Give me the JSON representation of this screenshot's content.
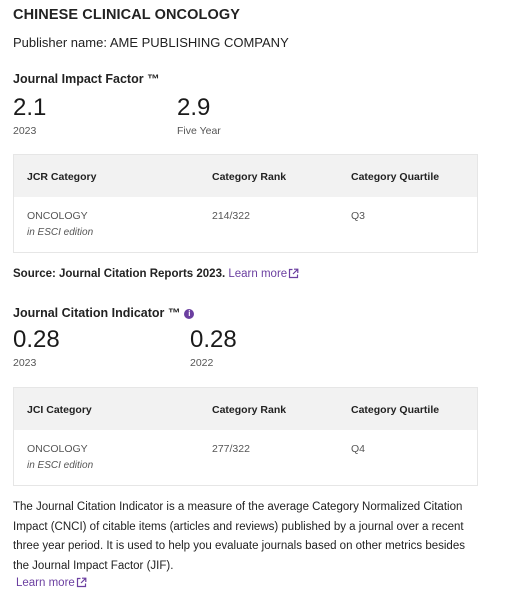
{
  "journal": {
    "title": "CHINESE CLINICAL ONCOLOGY",
    "publisher": "Publisher name: AME PUBLISHING COMPANY"
  },
  "jif": {
    "title": "Journal Impact Factor ™",
    "metrics": [
      {
        "value": "2.1",
        "label": "2023"
      },
      {
        "value": "2.9",
        "label": "Five Year"
      }
    ],
    "table": {
      "headers": [
        "JCR Category",
        "Category Rank",
        "Category Quartile"
      ],
      "rows": [
        {
          "category": "ONCOLOGY",
          "edition": "in ESCI edition",
          "rank": "214/322",
          "quartile": "Q3"
        }
      ]
    }
  },
  "source": {
    "text": "Source: Journal Citation Reports  2023.",
    "link": "Learn more",
    "link_icon": "external-link-icon"
  },
  "jci": {
    "title": "Journal Citation Indicator ™",
    "info_icon": "info-icon",
    "metrics": [
      {
        "value": "0.28",
        "label": "2023"
      },
      {
        "value": "0.28",
        "label": "2022"
      }
    ],
    "table": {
      "headers": [
        "JCI Category",
        "Category Rank",
        "Category Quartile"
      ],
      "rows": [
        {
          "category": "ONCOLOGY",
          "edition": "in ESCI edition",
          "rank": "277/322",
          "quartile": "Q4"
        }
      ]
    }
  },
  "description": {
    "text": "The Journal Citation Indicator is a measure of the average Category Normalized Citation Impact (CNCI) of citable items (articles and reviews) published by a journal over a recent three year period. It is used to help you evaluate journals based on other metrics besides the Journal Impact Factor (JIF).",
    "link": "Learn more"
  },
  "colors": {
    "accent": "#6b3fa0",
    "table_header_bg": "#f2f2f2"
  }
}
